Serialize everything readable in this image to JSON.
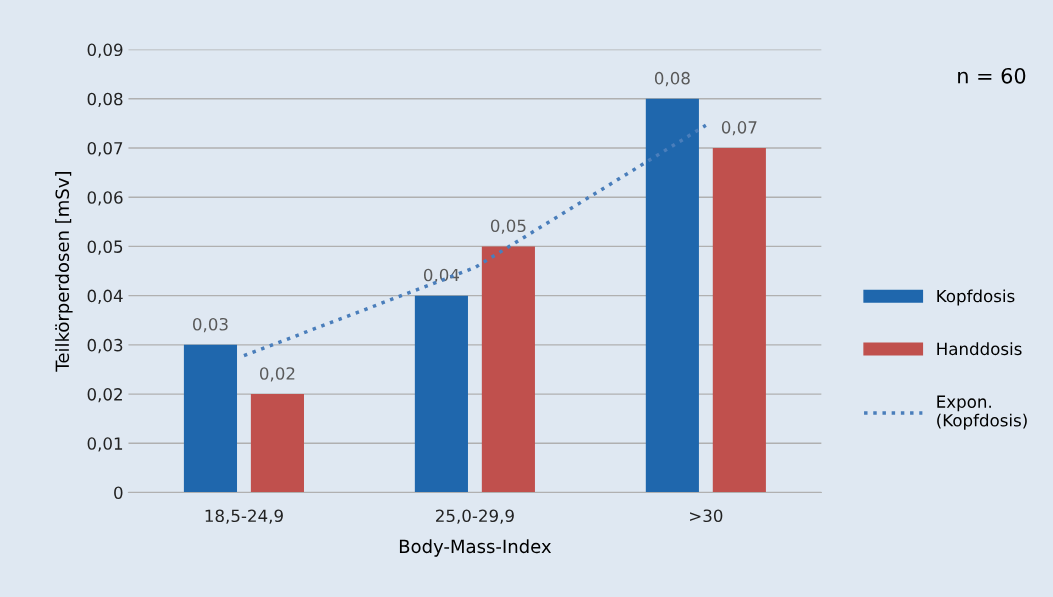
{
  "chart_data": {
    "type": "bar",
    "xlabel": "Body-Mass-Index",
    "ylabel": "Teilkörperdosen [mSv]",
    "categories": [
      "18,5-24,9",
      "25,0-29,9",
      ">30"
    ],
    "series": [
      {
        "name": "Kopfdosis",
        "color": "#1f67ad",
        "values": [
          0.03,
          0.04,
          0.08
        ],
        "value_labels": [
          "0,03",
          "0,04",
          "0,08"
        ]
      },
      {
        "name": "Handdosis",
        "color": "#c0504d",
        "values": [
          0.02,
          0.05,
          0.07
        ],
        "value_labels": [
          "0,02",
          "0,05",
          "0,07"
        ]
      },
      {
        "name": "Expon.\n(Kopfdosis)",
        "type": "line",
        "color": "#4a7ebb",
        "line_style": "dotted",
        "values": [
          0.0278,
          0.0457,
          0.0746
        ]
      }
    ],
    "ylim": [
      0,
      0.09
    ],
    "yticks": [
      0,
      {
        "value": 0.01,
        "label": "0,01"
      },
      {
        "value": 0.02,
        "label": "0,02"
      },
      {
        "value": 0.03,
        "label": "0,03"
      },
      {
        "value": 0.04,
        "label": "0,04"
      },
      {
        "value": 0.05,
        "label": "0,05"
      },
      {
        "value": 0.06,
        "label": "0,06"
      },
      {
        "value": 0.07,
        "label": "0,07"
      },
      {
        "value": 0.08,
        "label": "0,08"
      },
      {
        "value": 0.09,
        "label": "0,09"
      }
    ],
    "grid": "y",
    "legend": "right",
    "annotations": [
      "n = 60"
    ]
  }
}
